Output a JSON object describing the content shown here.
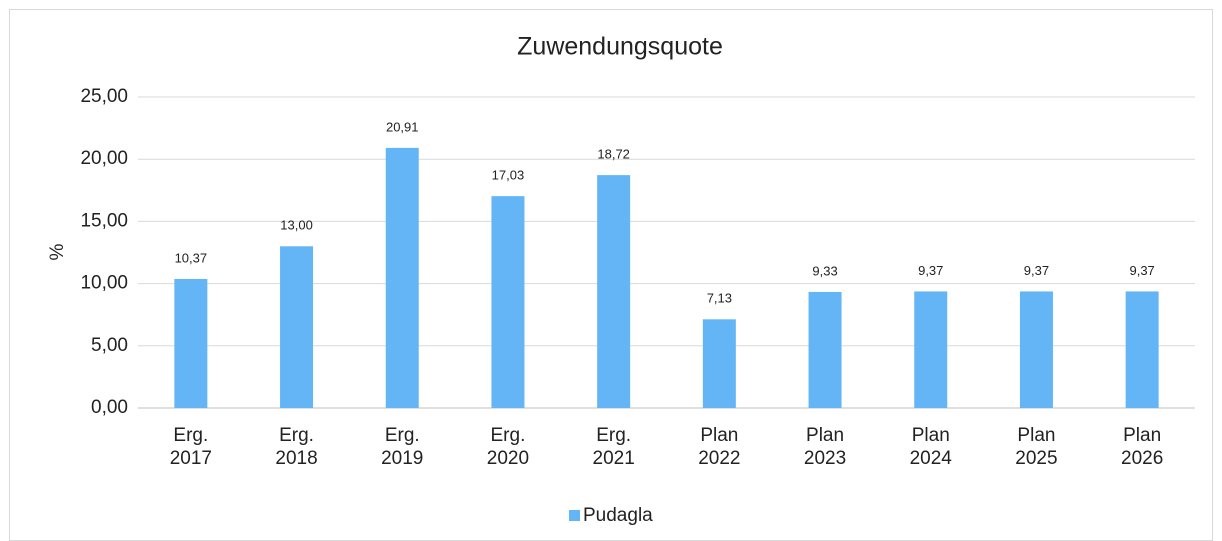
{
  "chart_data": {
    "type": "bar",
    "title": "Zuwendungsquote",
    "y_label": "%",
    "categories": [
      "Erg. 2017",
      "Erg. 2018",
      "Erg. 2019",
      "Erg. 2020",
      "Erg. 2021",
      "Plan 2022",
      "Plan 2023",
      "Plan 2024",
      "Plan 2025",
      "Plan 2026"
    ],
    "series": [
      {
        "name": "Pudagla",
        "color": "#64b5f6",
        "values": [
          10.37,
          13.0,
          20.91,
          17.03,
          18.72,
          7.13,
          9.33,
          9.37,
          9.37,
          9.37
        ],
        "value_labels": [
          "10,37",
          "13,00",
          "20,91",
          "17,03",
          "18,72",
          "7,13",
          "9,33",
          "9,37",
          "9,37",
          "9,37"
        ]
      }
    ],
    "ylim": [
      0,
      25
    ],
    "yticks": [
      {
        "value": 0,
        "label": "0,00"
      },
      {
        "value": 5,
        "label": "5,00"
      },
      {
        "value": 10,
        "label": "10,00"
      },
      {
        "value": 15,
        "label": "15,00"
      },
      {
        "value": 20,
        "label": "20,00"
      },
      {
        "value": 25,
        "label": "25,00"
      }
    ],
    "grid": true,
    "legend": "bottom"
  }
}
